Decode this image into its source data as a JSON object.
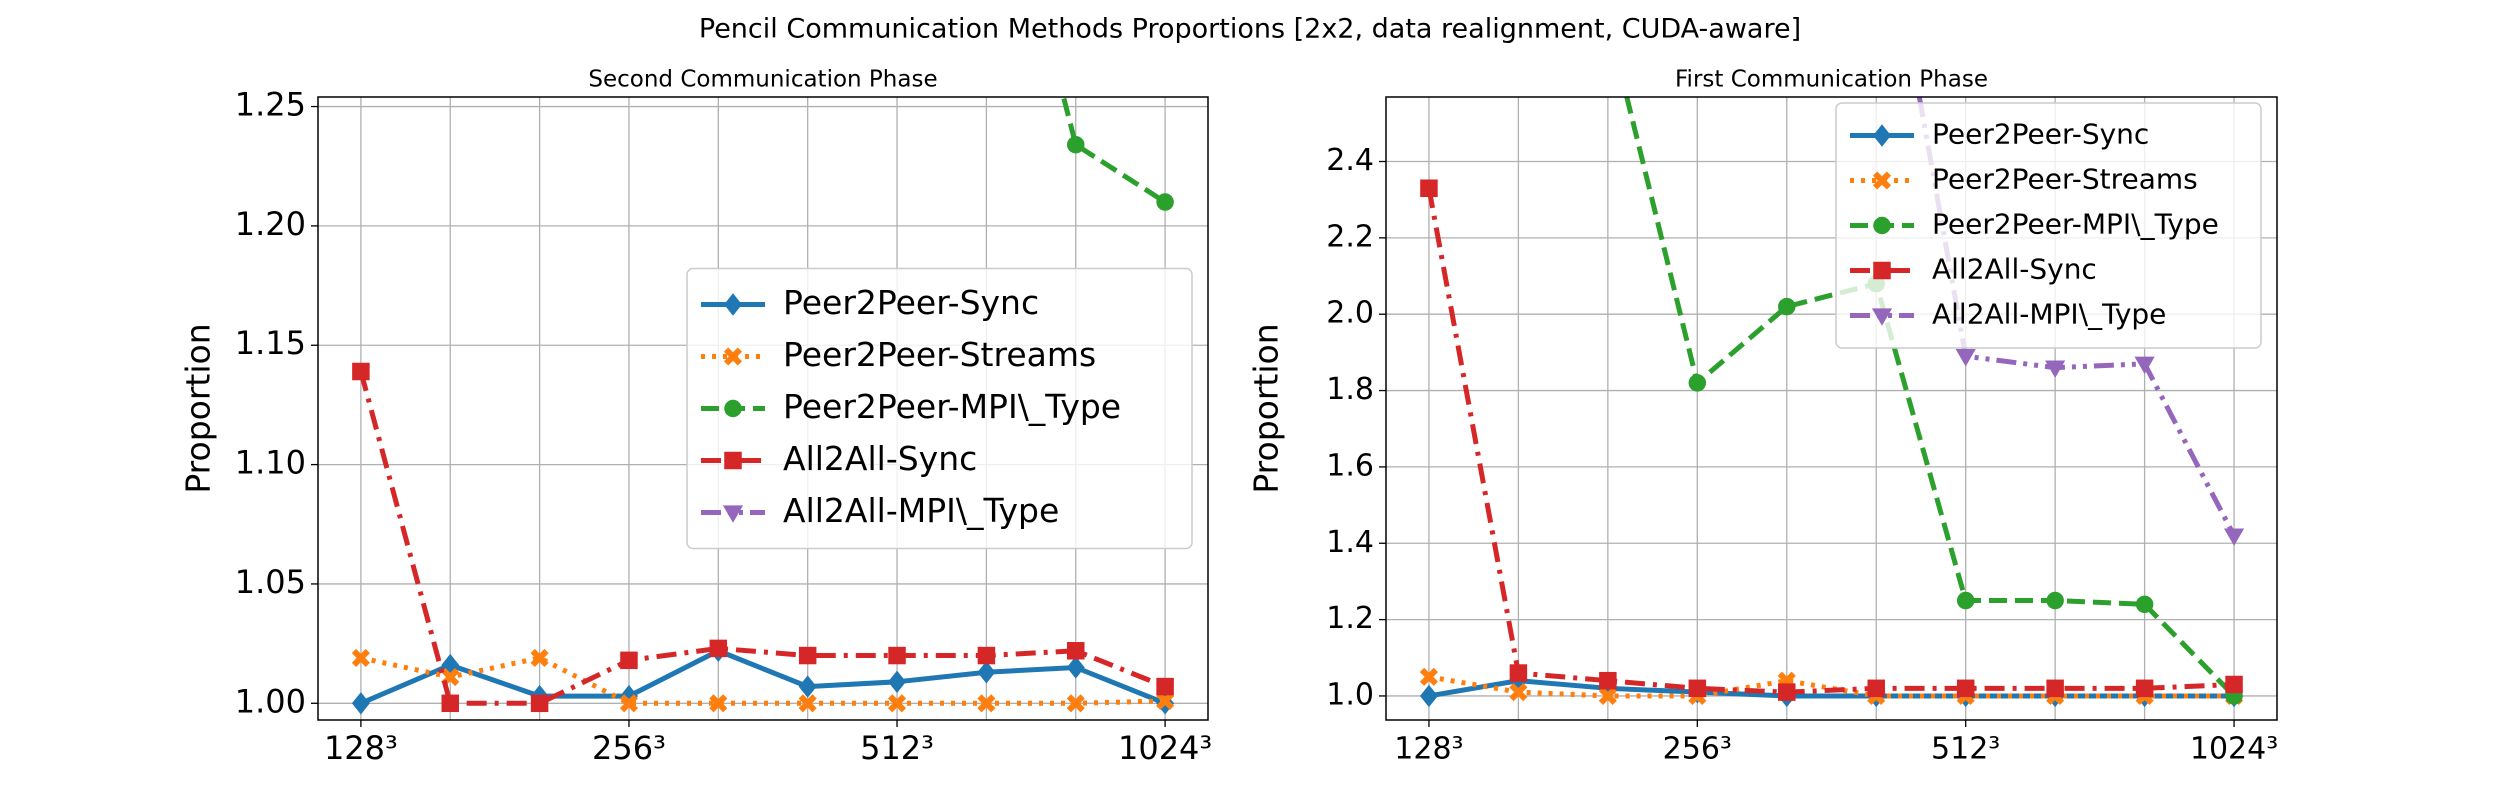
{
  "title": "Pencil Communication Methods Proportions [2x2, data realignment, CUDA-aware]",
  "chart_data": [
    {
      "type": "line",
      "title": "Second Communication Phase",
      "ylabel": "Proportion",
      "categories": [
        "128³",
        null,
        null,
        "256³",
        null,
        null,
        "512³",
        null,
        null,
        "1024³"
      ],
      "ylim": [
        0.993,
        1.254
      ],
      "yticks": [
        {
          "value": 1.0,
          "label": "1.00"
        },
        {
          "value": 1.05,
          "label": "1.05"
        },
        {
          "value": 1.1,
          "label": "1.10"
        },
        {
          "value": 1.15,
          "label": "1.15"
        },
        {
          "value": 1.2,
          "label": "1.20"
        },
        {
          "value": 1.25,
          "label": "1.25"
        }
      ],
      "grid": true,
      "legend": "center right",
      "series": [
        {
          "name": "Peer2Peer-Sync",
          "color": "#1f77b4",
          "marker": "D",
          "linestyle": "solid",
          "values": [
            1.0,
            1.016,
            1.003,
            1.003,
            1.022,
            1.007,
            1.009,
            1.013,
            1.015,
            1.0
          ]
        },
        {
          "name": "Peer2Peer-Streams",
          "color": "#ff7f0e",
          "marker": "X",
          "linestyle": "dotted",
          "values": [
            1.019,
            1.011,
            1.019,
            1.0,
            1.0,
            1.0,
            1.0,
            1.0,
            1.0,
            1.001
          ]
        },
        {
          "name": "Peer2Peer-MPI\\_Type",
          "color": "#2ca02c",
          "marker": "o",
          "linestyle": "dashed",
          "values": [
            null,
            null,
            null,
            null,
            null,
            null,
            null,
            1.38,
            1.234,
            1.21
          ]
        },
        {
          "name": "All2All-Sync",
          "color": "#d62728",
          "marker": "s",
          "linestyle": "dashdot",
          "values": [
            1.139,
            1.0,
            1.0,
            1.018,
            1.023,
            1.02,
            1.02,
            1.02,
            1.022,
            1.007
          ]
        },
        {
          "name": "All2All-MPI\\_Type",
          "color": "#9467bd",
          "marker": "v",
          "linestyle": "dashdotdot",
          "values": [
            null,
            null,
            null,
            null,
            null,
            null,
            null,
            null,
            null,
            null
          ]
        }
      ]
    },
    {
      "type": "line",
      "title": "First Communication Phase",
      "ylabel": "Proportion",
      "categories": [
        "128³",
        null,
        null,
        "256³",
        null,
        null,
        "512³",
        null,
        null,
        "1024³"
      ],
      "ylim": [
        0.937,
        2.569
      ],
      "yticks": [
        {
          "value": 1.0,
          "label": "1.0"
        },
        {
          "value": 1.2,
          "label": "1.2"
        },
        {
          "value": 1.4,
          "label": "1.4"
        },
        {
          "value": 1.6,
          "label": "1.6"
        },
        {
          "value": 1.8,
          "label": "1.8"
        },
        {
          "value": 2.0,
          "label": "2.0"
        },
        {
          "value": 2.2,
          "label": "2.2"
        },
        {
          "value": 2.4,
          "label": "2.4"
        }
      ],
      "grid": true,
      "legend": "upper right",
      "series": [
        {
          "name": "Peer2Peer-Sync",
          "color": "#1f77b4",
          "marker": "D",
          "linestyle": "solid",
          "values": [
            1.0,
            1.04,
            1.02,
            1.01,
            1.0,
            1.0,
            1.0,
            1.0,
            1.0,
            1.0
          ]
        },
        {
          "name": "Peer2Peer-Streams",
          "color": "#ff7f0e",
          "marker": "X",
          "linestyle": "dotted",
          "values": [
            1.05,
            1.01,
            1.0,
            1.0,
            1.04,
            1.0,
            1.0,
            1.0,
            1.0,
            1.0
          ]
        },
        {
          "name": "Peer2Peer-MPI\\_Type",
          "color": "#2ca02c",
          "marker": "o",
          "linestyle": "dashed",
          "values": [
            null,
            null,
            2.77,
            1.82,
            2.02,
            2.08,
            1.25,
            1.25,
            1.24,
            1.0
          ]
        },
        {
          "name": "All2All-Sync",
          "color": "#d62728",
          "marker": "s",
          "linestyle": "dashdot",
          "values": [
            2.33,
            1.06,
            1.04,
            1.02,
            1.01,
            1.02,
            1.02,
            1.02,
            1.02,
            1.03
          ]
        },
        {
          "name": "All2All-MPI\\_Type",
          "color": "#9467bd",
          "marker": "v",
          "linestyle": "dashdotdot",
          "values": [
            null,
            null,
            null,
            null,
            null,
            3.2,
            1.89,
            1.86,
            1.87,
            1.42
          ]
        }
      ]
    }
  ]
}
